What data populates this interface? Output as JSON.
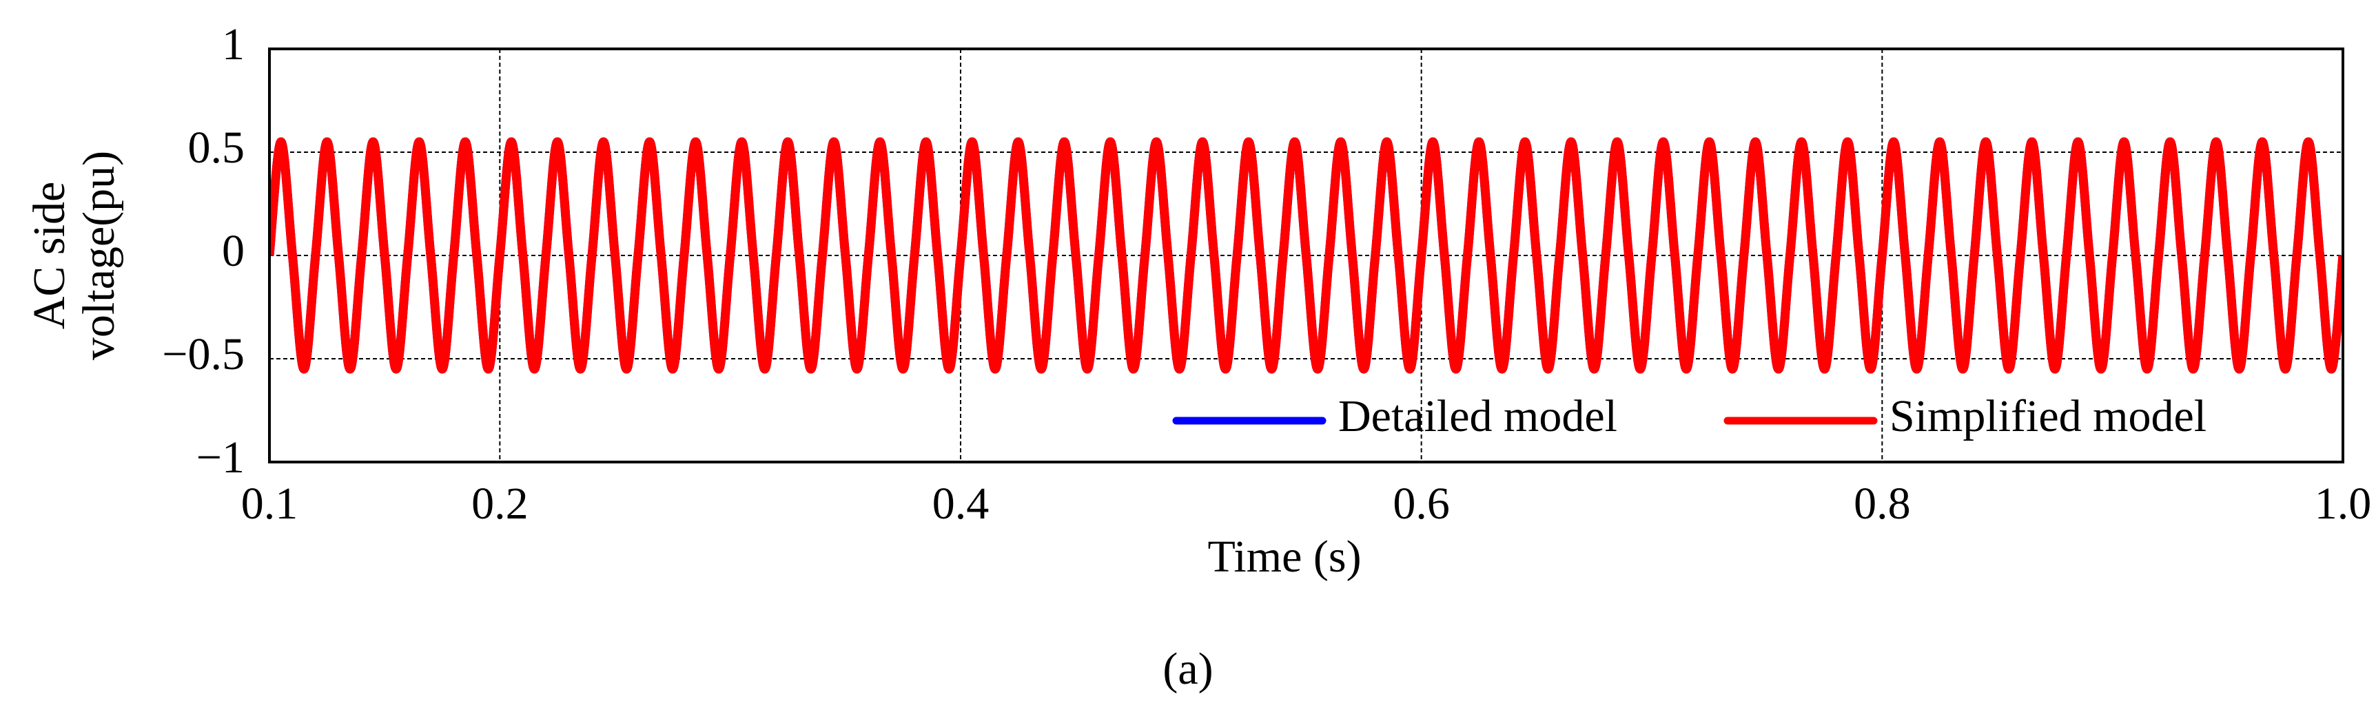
{
  "chart_data": {
    "type": "line",
    "ylabel": [
      "AC side",
      "voltage(pu)"
    ],
    "xlabel": "Time (s)",
    "caption": "(a)",
    "legend": "lower right",
    "grid": true,
    "xlim": [
      0.1,
      1.0
    ],
    "ylim": [
      -1,
      1
    ],
    "xticks": [
      0.1,
      0.2,
      0.4,
      0.6,
      0.8,
      {
        "value": 1.0,
        "label": "1.0"
      }
    ],
    "yticks": [
      {
        "value": -1,
        "label": "−1"
      },
      {
        "value": -0.5,
        "label": "−0.5"
      },
      0,
      0.5,
      1
    ],
    "x": [
      0.1,
      0.105,
      0.11,
      0.115,
      0.12,
      0.125,
      0.13,
      0.135,
      0.14,
      0.145,
      0.15,
      0.155,
      0.16,
      0.165,
      0.17,
      0.175,
      0.18,
      0.185,
      0.19,
      0.195,
      0.2,
      0.205,
      0.21,
      0.215,
      0.22,
      0.225,
      0.23,
      0.235,
      0.24,
      0.245,
      0.25,
      0.255,
      0.26,
      0.265,
      0.27,
      0.275,
      0.28,
      0.285,
      0.29,
      0.295,
      0.3,
      0.305,
      0.31,
      0.315,
      0.32,
      0.325,
      0.33,
      0.335,
      0.34,
      0.345,
      0.35,
      0.355,
      0.36,
      0.365,
      0.37,
      0.375,
      0.38,
      0.385,
      0.39,
      0.395,
      0.4,
      0.405,
      0.41,
      0.415,
      0.42,
      0.425,
      0.43,
      0.435,
      0.44,
      0.445,
      0.45,
      0.455,
      0.46,
      0.465,
      0.47,
      0.475,
      0.48,
      0.485,
      0.49,
      0.495,
      0.5,
      0.505,
      0.51,
      0.515,
      0.52,
      0.525,
      0.53,
      0.535,
      0.54,
      0.545,
      0.55,
      0.555,
      0.56,
      0.565,
      0.57,
      0.575,
      0.58,
      0.585,
      0.59,
      0.595,
      0.6,
      0.605,
      0.61,
      0.615,
      0.62,
      0.625,
      0.63,
      0.635,
      0.64,
      0.645,
      0.65,
      0.655,
      0.66,
      0.665,
      0.67,
      0.675,
      0.68,
      0.685,
      0.69,
      0.695,
      0.7,
      0.705,
      0.71,
      0.715,
      0.72,
      0.725,
      0.73,
      0.735,
      0.74,
      0.745,
      0.75,
      0.755,
      0.76,
      0.765,
      0.77,
      0.775,
      0.78,
      0.785,
      0.79,
      0.795,
      0.8,
      0.805,
      0.81,
      0.815,
      0.82,
      0.825,
      0.83,
      0.835,
      0.84,
      0.845,
      0.85,
      0.855,
      0.86,
      0.865,
      0.87,
      0.875,
      0.88,
      0.885,
      0.89,
      0.895,
      0.9,
      0.905,
      0.91,
      0.915,
      0.92,
      0.925,
      0.93,
      0.935,
      0.94,
      0.945,
      0.95,
      0.955,
      0.96,
      0.965,
      0.97,
      0.975,
      0.98,
      0.985,
      0.99,
      0.995,
      1.0
    ],
    "series": [
      {
        "name": "Detailed model",
        "color": "#0000ff",
        "values": [
          0,
          0.55,
          0,
          -0.55,
          0,
          0.55,
          0,
          -0.55,
          0,
          0.55,
          0,
          -0.55,
          0,
          0.55,
          0,
          -0.55,
          0,
          0.55,
          0,
          -0.55,
          0,
          0.55,
          0,
          -0.55,
          0,
          0.55,
          0,
          -0.55,
          0,
          0.55,
          0,
          -0.55,
          0,
          0.55,
          0,
          -0.55,
          0,
          0.55,
          0,
          -0.55,
          0,
          0.55,
          0,
          -0.55,
          0,
          0.55,
          0,
          -0.55,
          0,
          0.55,
          0,
          -0.55,
          0,
          0.55,
          0,
          -0.55,
          0,
          0.55,
          0,
          -0.55,
          0,
          0.55,
          0,
          -0.55,
          0,
          0.55,
          0,
          -0.55,
          0,
          0.55,
          0,
          -0.55,
          0,
          0.55,
          0,
          -0.55,
          0,
          0.55,
          0,
          -0.55,
          0,
          0.55,
          0,
          -0.55,
          0,
          0.55,
          0,
          -0.55,
          0,
          0.55,
          0,
          -0.55,
          0,
          0.55,
          0,
          -0.55,
          0,
          0.55,
          0,
          -0.55,
          0,
          0.55,
          0,
          -0.55,
          0,
          0.55,
          0,
          -0.55,
          0,
          0.55,
          0,
          -0.55,
          0,
          0.55,
          0,
          -0.55,
          0,
          0.55,
          0,
          -0.55,
          0,
          0.55,
          0,
          -0.55,
          0,
          0.55,
          0,
          -0.55,
          0,
          0.55,
          0,
          -0.55,
          0,
          0.55,
          0,
          -0.55,
          0,
          0.55,
          0,
          -0.55,
          0,
          0.55,
          0,
          -0.55,
          0,
          0.55,
          0,
          -0.55,
          0,
          0.55,
          0,
          -0.55,
          0,
          0.55,
          0,
          -0.55,
          0,
          0.55,
          0,
          -0.55,
          0,
          0.55,
          0,
          -0.55,
          0,
          0.55,
          0,
          -0.55,
          0,
          0.55,
          0,
          -0.55,
          0,
          0.55,
          0,
          -0.55,
          0,
          0.55,
          0,
          -0.55,
          0
        ]
      },
      {
        "name": "Simplified model",
        "color": "#ff0000",
        "values": [
          0,
          0.55,
          0,
          -0.55,
          0,
          0.55,
          0,
          -0.55,
          0,
          0.55,
          0,
          -0.55,
          0,
          0.55,
          0,
          -0.55,
          0,
          0.55,
          0,
          -0.55,
          0,
          0.55,
          0,
          -0.55,
          0,
          0.55,
          0,
          -0.55,
          0,
          0.55,
          0,
          -0.55,
          0,
          0.55,
          0,
          -0.55,
          0,
          0.55,
          0,
          -0.55,
          0,
          0.55,
          0,
          -0.55,
          0,
          0.55,
          0,
          -0.55,
          0,
          0.55,
          0,
          -0.55,
          0,
          0.55,
          0,
          -0.55,
          0,
          0.55,
          0,
          -0.55,
          0,
          0.55,
          0,
          -0.55,
          0,
          0.55,
          0,
          -0.55,
          0,
          0.55,
          0,
          -0.55,
          0,
          0.55,
          0,
          -0.55,
          0,
          0.55,
          0,
          -0.55,
          0,
          0.55,
          0,
          -0.55,
          0,
          0.55,
          0,
          -0.55,
          0,
          0.55,
          0,
          -0.55,
          0,
          0.55,
          0,
          -0.55,
          0,
          0.55,
          0,
          -0.55,
          0,
          0.55,
          0,
          -0.55,
          0,
          0.55,
          0,
          -0.55,
          0,
          0.55,
          0,
          -0.55,
          0,
          0.55,
          0,
          -0.55,
          0,
          0.55,
          0,
          -0.55,
          0,
          0.55,
          0,
          -0.55,
          0,
          0.55,
          0,
          -0.55,
          0,
          0.55,
          0,
          -0.55,
          0,
          0.55,
          0,
          -0.55,
          0,
          0.55,
          0,
          -0.55,
          0,
          0.55,
          0,
          -0.55,
          0,
          0.55,
          0,
          -0.55,
          0,
          0.55,
          0,
          -0.55,
          0,
          0.55,
          0,
          -0.55,
          0,
          0.55,
          0,
          -0.55,
          0,
          0.55,
          0,
          -0.55,
          0,
          0.55,
          0,
          -0.55,
          0,
          0.55,
          0,
          -0.55,
          0,
          0.55,
          0,
          -0.55,
          0,
          0.55,
          0,
          -0.55,
          0
        ]
      }
    ]
  }
}
